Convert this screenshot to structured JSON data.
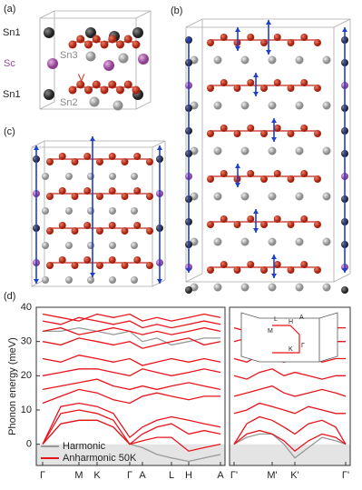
{
  "panels": {
    "a": "(a)",
    "b": "(b)",
    "c": "(c)",
    "d": "(d)"
  },
  "atom_labels": {
    "sn1_top": "Sn1",
    "sc": "Sc",
    "sn3": "Sn3",
    "v": "V",
    "sn1_bottom": "Sn1",
    "sn2": "Sn2"
  },
  "chart_data": [
    {
      "type": "line",
      "ylabel": "Phonon energy (meV)",
      "ylim": [
        -6.2,
        40
      ],
      "yticks": [
        0,
        10,
        20,
        30,
        40
      ],
      "xlim": [
        0,
        208
      ],
      "xticks": [
        {
          "value": 7,
          "label": "Γ"
        },
        {
          "value": 47,
          "label": "M"
        },
        {
          "value": 67,
          "label": "K"
        },
        {
          "value": 103,
          "label": "Γ"
        },
        {
          "value": 117,
          "label": "A"
        },
        {
          "value": 149,
          "label": "L"
        },
        {
          "value": 168,
          "label": "H"
        },
        {
          "value": 203,
          "label": "A"
        }
      ],
      "x": [
        7,
        27,
        47,
        67,
        85,
        103,
        117,
        133,
        149,
        168,
        185,
        203
      ],
      "legend": "lower left",
      "series": [
        {
          "name": "Harmonic",
          "color": "#999999",
          "values": [
            [
              0,
              6,
              7,
              7,
              5,
              0,
              -1,
              -3,
              -4,
              -5,
              -4,
              -3
            ],
            [
              33,
              33,
              34,
              33,
              32,
              33,
              30,
              31,
              29,
              30,
              31,
              31
            ]
          ]
        },
        {
          "name": "Anharmonic 50K",
          "color": "#e8141c",
          "values": [
            [
              0,
              6,
              7,
              7,
              5,
              0,
              1,
              2,
              2,
              -2,
              -1,
              0
            ],
            [
              0,
              9,
              10,
              9,
              7,
              0,
              3,
              5,
              6,
              3,
              4,
              3
            ],
            [
              0,
              11,
              12,
              11,
              9,
              2,
              5,
              7,
              8,
              7,
              6,
              5
            ],
            [
              12,
              14,
              16,
              15,
              13,
              12,
              14,
              15,
              14,
              13,
              14,
              14
            ],
            [
              16,
              17,
              18,
              19,
              17,
              16,
              17,
              16,
              17,
              18,
              17,
              16
            ],
            [
              20,
              21,
              22,
              22,
              21,
              20,
              22,
              21,
              20,
              21,
              22,
              21
            ],
            [
              25,
              24,
              26,
              25,
              24,
              25,
              23,
              24,
              25,
              24,
              25,
              24
            ],
            [
              30,
              29,
              31,
              30,
              29,
              30,
              28,
              29,
              30,
              31,
              29,
              30
            ],
            [
              33,
              34,
              32,
              33,
              34,
              33,
              32,
              33,
              32,
              33,
              34,
              33
            ],
            [
              36,
              35,
              37,
              36,
              35,
              36,
              34,
              35,
              34,
              35,
              36,
              35
            ],
            [
              38,
              37,
              36,
              38,
              37,
              38,
              36,
              37,
              36,
              37,
              38,
              37
            ]
          ]
        }
      ]
    },
    {
      "type": "line",
      "ylim": [
        -6.2,
        40
      ],
      "xlim": [
        0,
        133
      ],
      "xticks": [
        {
          "value": 5,
          "label": "Γ'"
        },
        {
          "value": 47,
          "label": "M'"
        },
        {
          "value": 72,
          "label": "K'"
        },
        {
          "value": 128,
          "label": "Γ'"
        }
      ],
      "x": [
        5,
        19,
        33,
        47,
        60,
        72,
        87,
        102,
        117,
        128
      ],
      "inset_labels": [
        "A",
        "L",
        "H",
        "M",
        "K",
        "Γ"
      ],
      "series": [
        {
          "name": "Harmonic",
          "color": "#999999",
          "values": [
            [
              0,
              2,
              3,
              3,
              0,
              -4,
              -1,
              2,
              1,
              0
            ]
          ]
        },
        {
          "name": "Anharmonic 50K",
          "color": "#e8141c",
          "values": [
            [
              0,
              3,
              4,
              3,
              1,
              -2,
              1,
              3,
              2,
              0
            ],
            [
              0,
              6,
              8,
              7,
              5,
              3,
              6,
              7,
              5,
              0
            ],
            [
              9,
              10,
              12,
              11,
              10,
              9,
              11,
              10,
              9,
              9
            ],
            [
              14,
              15,
              16,
              17,
              15,
              14,
              15,
              16,
              15,
              14
            ],
            [
              20,
              19,
              21,
              22,
              20,
              21,
              20,
              19,
              20,
              20
            ],
            [
              25,
              24,
              26,
              25,
              24,
              25,
              26,
              24,
              25,
              25
            ],
            [
              30,
              31,
              29,
              30,
              31,
              30,
              29,
              31,
              30,
              30
            ],
            [
              34,
              33,
              35,
              34,
              33,
              34,
              35,
              33,
              34,
              34
            ]
          ]
        }
      ]
    }
  ]
}
